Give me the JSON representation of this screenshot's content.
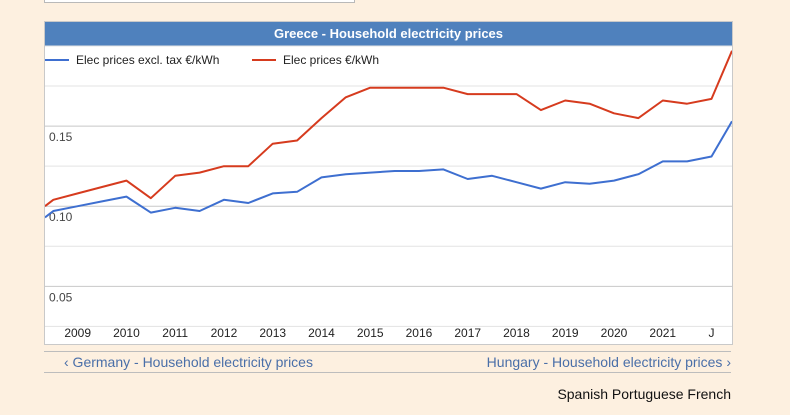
{
  "nav": {
    "prev_label": "‹ Germany - Household electricity prices",
    "next_label": "Hungary - Household electricity prices ›"
  },
  "languages": [
    "Spanish",
    "Portuguese",
    "French"
  ],
  "chart_data": {
    "type": "line",
    "title": "Greece - Household electricity prices",
    "xlabel": "",
    "ylabel": "",
    "x_tick_labels": [
      "2009",
      "2010",
      "2011",
      "2012",
      "2013",
      "2014",
      "2015",
      "2016",
      "2017",
      "2018",
      "2019",
      "2020",
      "2021",
      "J"
    ],
    "y_tick_labels": [
      "0.05",
      "0.10",
      "0.15"
    ],
    "y_ticks": [
      0.05,
      0.1,
      0.15
    ],
    "ylim": [
      0.014,
      0.2
    ],
    "x_range": [
      2008.33,
      2022.42
    ],
    "grid": true,
    "legend_position": "top-left",
    "x": [
      2008.33,
      2008.5,
      2009.0,
      2009.5,
      2010.0,
      2010.5,
      2011.0,
      2011.5,
      2012.0,
      2012.5,
      2013.0,
      2013.5,
      2014.0,
      2014.5,
      2015.0,
      2015.5,
      2016.0,
      2016.5,
      2017.0,
      2017.5,
      2018.0,
      2018.5,
      2019.0,
      2019.5,
      2020.0,
      2020.5,
      2021.0,
      2021.5,
      2022.0,
      2022.42
    ],
    "series": [
      {
        "name": "Elec prices excl. tax €/kWh",
        "color": "#3e6fd0",
        "values": [
          0.093,
          0.097,
          0.1,
          0.103,
          0.106,
          0.096,
          0.099,
          0.097,
          0.104,
          0.102,
          0.108,
          0.109,
          0.118,
          0.12,
          0.121,
          0.122,
          0.122,
          0.123,
          0.117,
          0.119,
          0.115,
          0.111,
          0.115,
          0.114,
          0.116,
          0.12,
          0.128,
          0.128,
          0.131,
          0.153
        ]
      },
      {
        "name": "Elec prices €/kWh",
        "color": "#d63b1e",
        "values": [
          0.1,
          0.104,
          0.108,
          0.112,
          0.116,
          0.105,
          0.119,
          0.121,
          0.125,
          0.125,
          0.139,
          0.141,
          0.155,
          0.168,
          0.174,
          0.174,
          0.174,
          0.174,
          0.17,
          0.17,
          0.17,
          0.16,
          0.166,
          0.164,
          0.158,
          0.155,
          0.166,
          0.164,
          0.167,
          0.197
        ]
      }
    ]
  }
}
